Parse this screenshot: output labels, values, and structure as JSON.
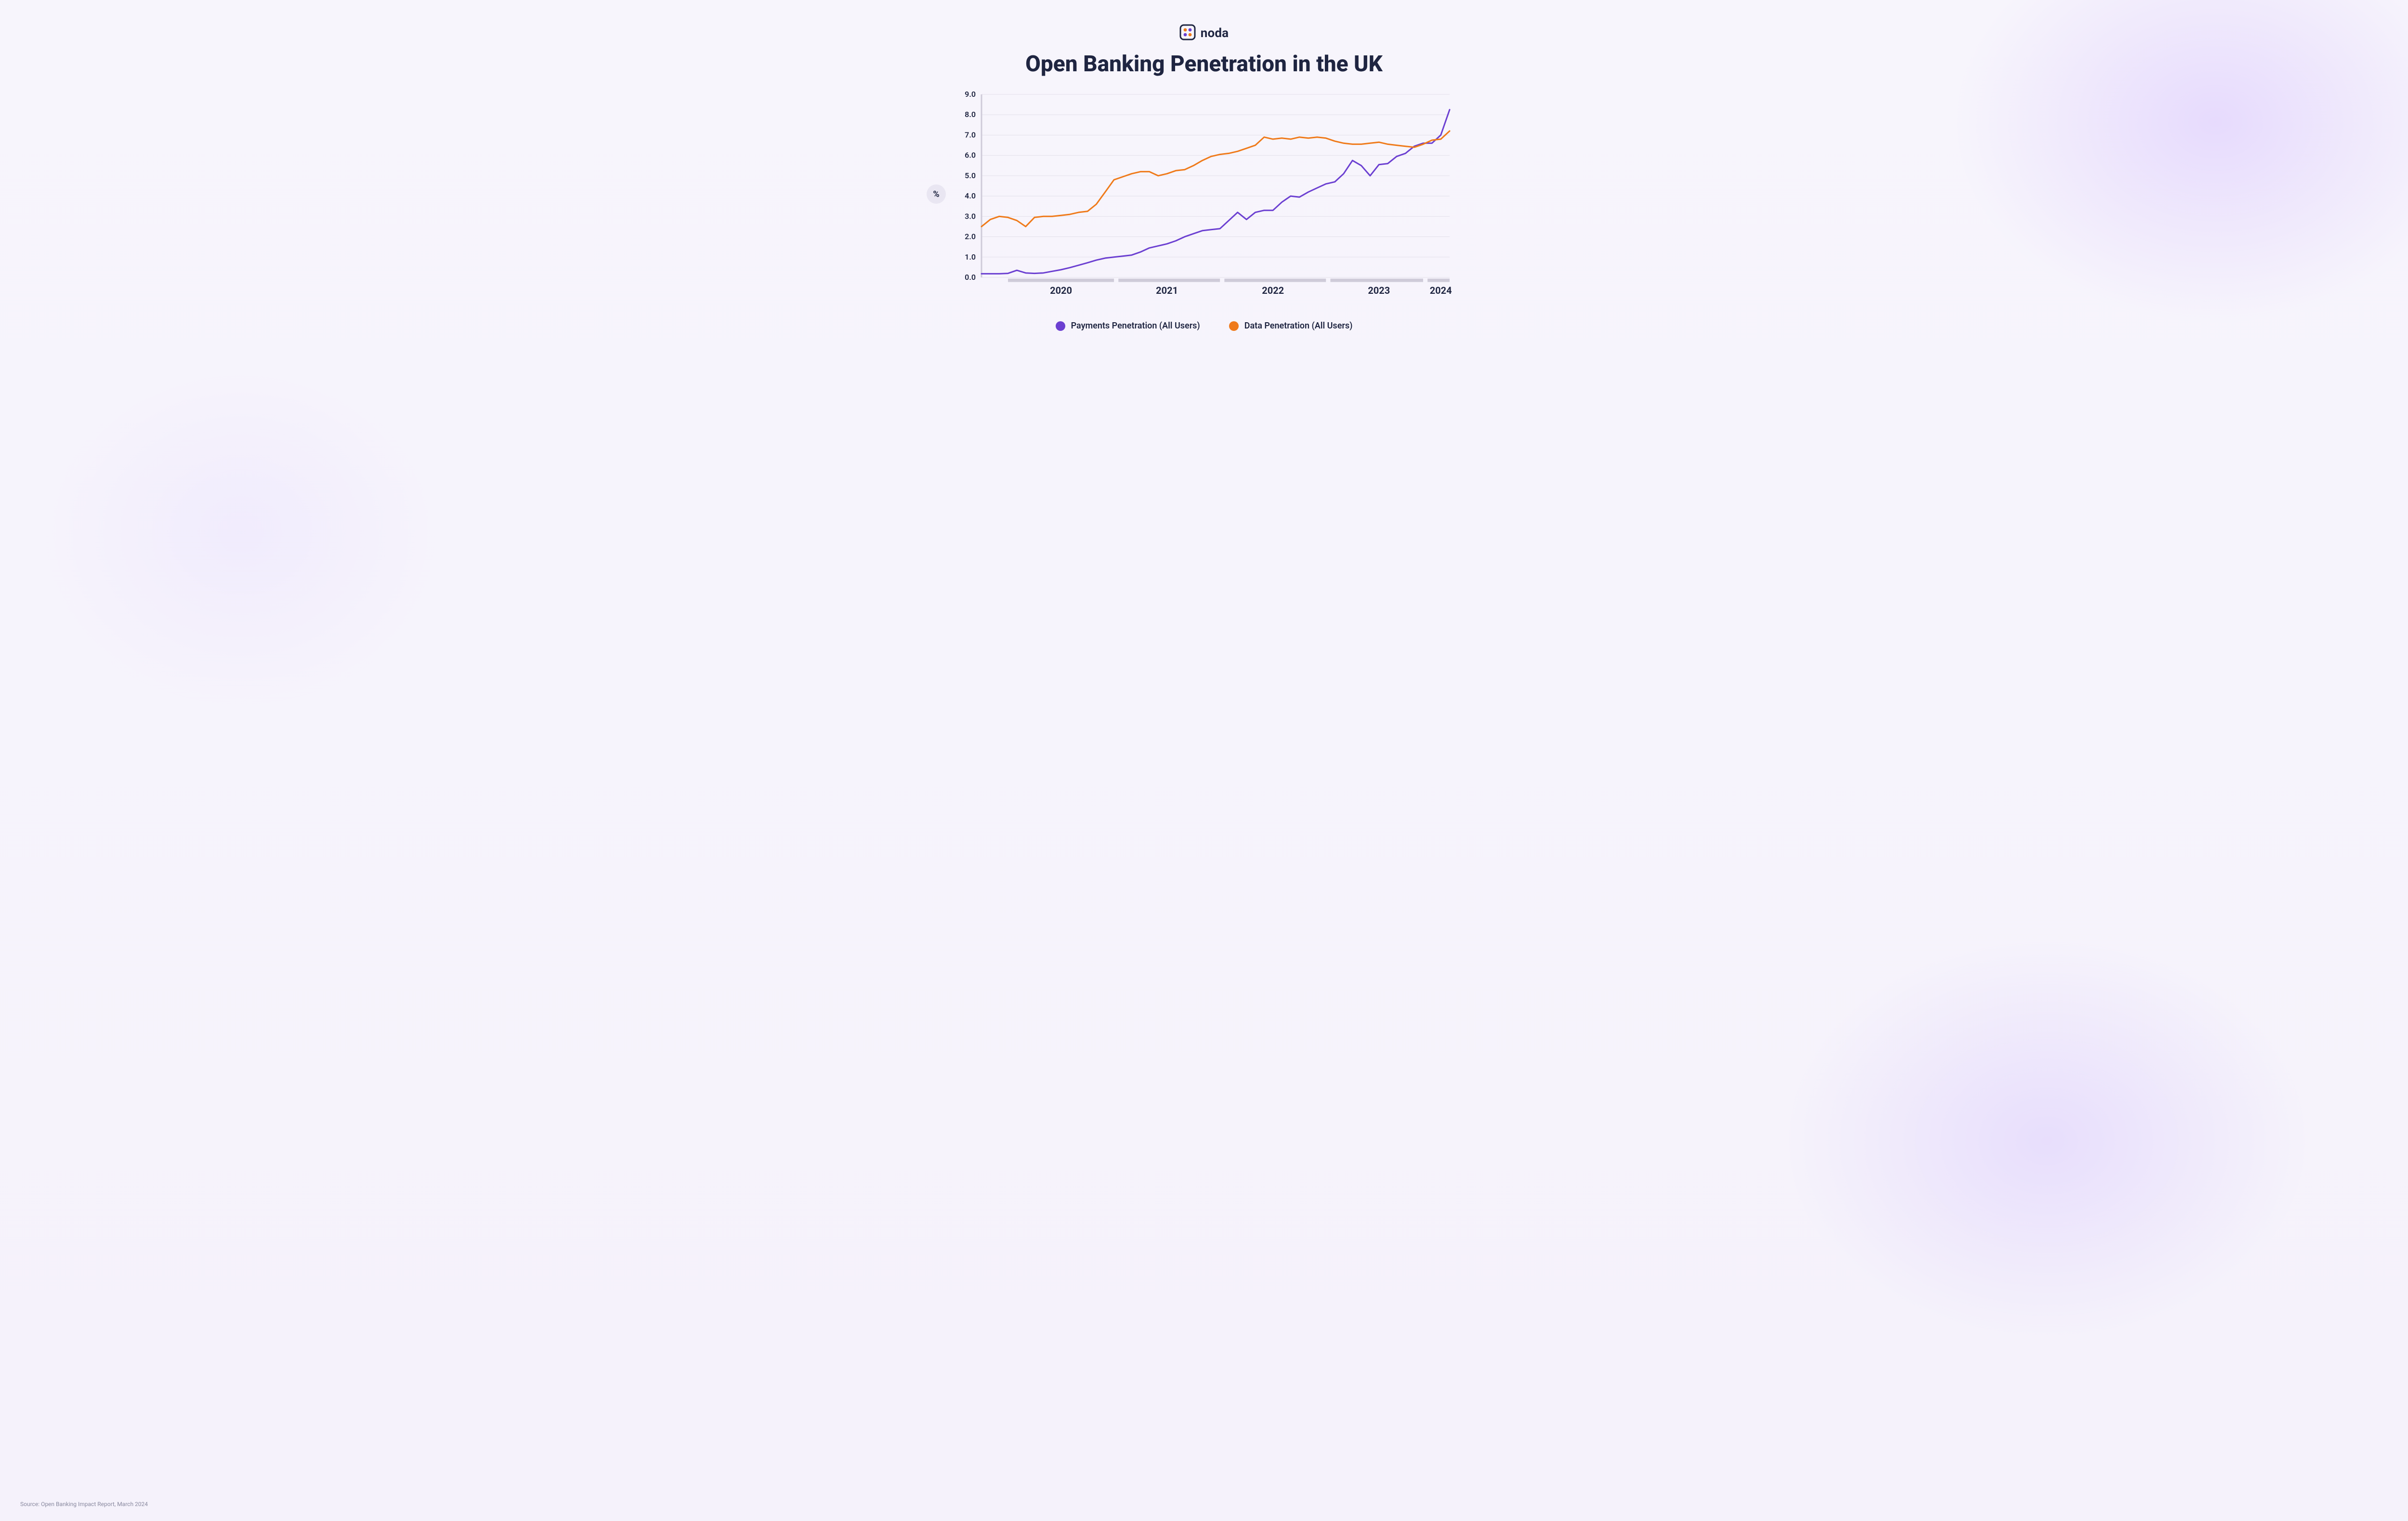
{
  "brand": {
    "name": "noda"
  },
  "title": "Open Banking Penetration in the UK",
  "source_note": "Source: Open Banking Impact Report, March 2024",
  "chart": {
    "type": "line",
    "background_color": "transparent",
    "grid_color": "#e3e0ea",
    "axis_color": "#cfcbd9",
    "yaxis": {
      "label": "%",
      "ylim_min": 0.0,
      "ylim_max": 9.0,
      "tick_step": 1.0,
      "tick_decimals": 1
    },
    "xaxis": {
      "domain_min": 0,
      "domain_max": 53,
      "year_ticks": [
        {
          "label": "2020",
          "center": 9,
          "seg_start": 3,
          "seg_end": 15
        },
        {
          "label": "2021",
          "center": 21,
          "seg_start": 15.5,
          "seg_end": 27
        },
        {
          "label": "2022",
          "center": 33,
          "seg_start": 27.5,
          "seg_end": 39
        },
        {
          "label": "2023",
          "center": 45,
          "seg_start": 39.5,
          "seg_end": 50
        },
        {
          "label": "2024",
          "center": 52,
          "seg_start": 50.5,
          "seg_end": 53
        }
      ]
    },
    "line_width": 3,
    "series": [
      {
        "id": "payments",
        "label": "Payments Penetration (All Users)",
        "color": "#6b3fd1",
        "y": [
          0.18,
          0.18,
          0.18,
          0.2,
          0.35,
          0.22,
          0.2,
          0.22,
          0.3,
          0.38,
          0.48,
          0.6,
          0.72,
          0.85,
          0.95,
          1.0,
          1.05,
          1.1,
          1.25,
          1.45,
          1.55,
          1.65,
          1.8,
          2.0,
          2.15,
          2.3,
          2.35,
          2.4,
          2.8,
          3.2,
          2.85,
          3.2,
          3.3,
          3.3,
          3.7,
          4.0,
          3.95,
          4.2,
          4.4,
          4.6,
          4.7,
          5.1,
          5.75,
          5.5,
          5.0,
          5.55,
          5.6,
          5.95,
          6.1,
          6.45,
          6.6,
          6.6,
          7.0,
          8.25
        ]
      },
      {
        "id": "data",
        "label": "Data Penetration (All Users)",
        "color": "#ef7a1a",
        "y": [
          2.5,
          2.85,
          3.0,
          2.95,
          2.8,
          2.5,
          2.95,
          3.0,
          3.0,
          3.05,
          3.1,
          3.2,
          3.25,
          3.6,
          4.2,
          4.8,
          4.95,
          5.1,
          5.2,
          5.2,
          5.0,
          5.1,
          5.25,
          5.3,
          5.5,
          5.75,
          5.95,
          6.05,
          6.1,
          6.2,
          6.35,
          6.5,
          6.9,
          6.8,
          6.85,
          6.8,
          6.9,
          6.85,
          6.9,
          6.85,
          6.7,
          6.6,
          6.55,
          6.55,
          6.6,
          6.65,
          6.55,
          6.5,
          6.45,
          6.4,
          6.55,
          6.75,
          6.8,
          7.2
        ]
      }
    ]
  },
  "legend": [
    {
      "label": "Payments Penetration (All Users)",
      "color": "#6b3fd1"
    },
    {
      "label": "Data Penetration (All Users)",
      "color": "#ef7a1a"
    }
  ],
  "logo": {
    "box_stroke": "#1f2541",
    "dot_colors": [
      "#ef7a1a",
      "#6b3fd1",
      "#6b3fd1",
      "#ef7a1a"
    ]
  }
}
